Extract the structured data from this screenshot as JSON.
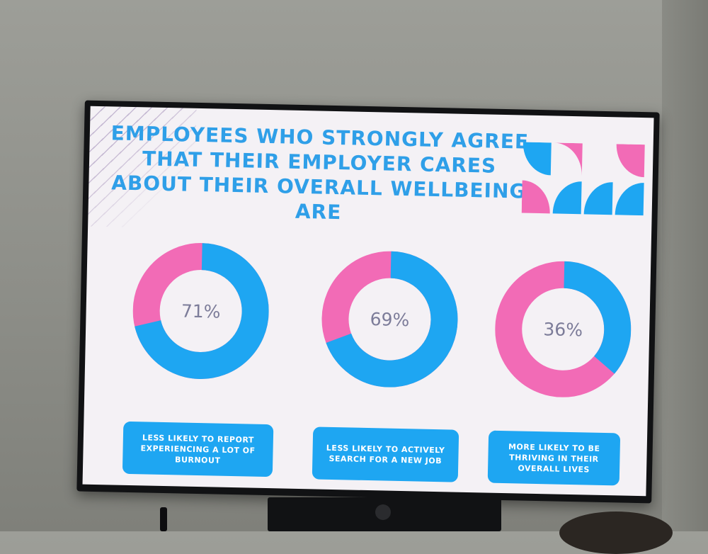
{
  "slide": {
    "title_lines": [
      "EMPLOYEES WHO STRONGLY AGREE",
      "THAT THEIR EMPLOYER CARES",
      "ABOUT THEIR OVERALL WELLBEING",
      "ARE"
    ],
    "colors": {
      "blue": "#1ea6f2",
      "pink": "#f26bb6",
      "title": "#2f9fe8",
      "number": "#7c7c99",
      "background": "#f4f1f5"
    },
    "stats": [
      {
        "label": "71%",
        "value": 71,
        "caption_lines": [
          "LESS LIKELY TO REPORT",
          "EXPERIENCING A LOT OF",
          "BURNOUT"
        ]
      },
      {
        "label": "69%",
        "value": 69,
        "caption_lines": [
          "LESS LIKELY TO ACTIVELY",
          "SEARCH FOR A NEW JOB"
        ]
      },
      {
        "label": "36%",
        "value": 36,
        "caption_lines": [
          "MORE LIKELY TO BE",
          "THRIVING IN THEIR",
          "OVERALL LIVES"
        ]
      }
    ],
    "decoration_icon": "geometric-quarter-circle-pattern"
  }
}
